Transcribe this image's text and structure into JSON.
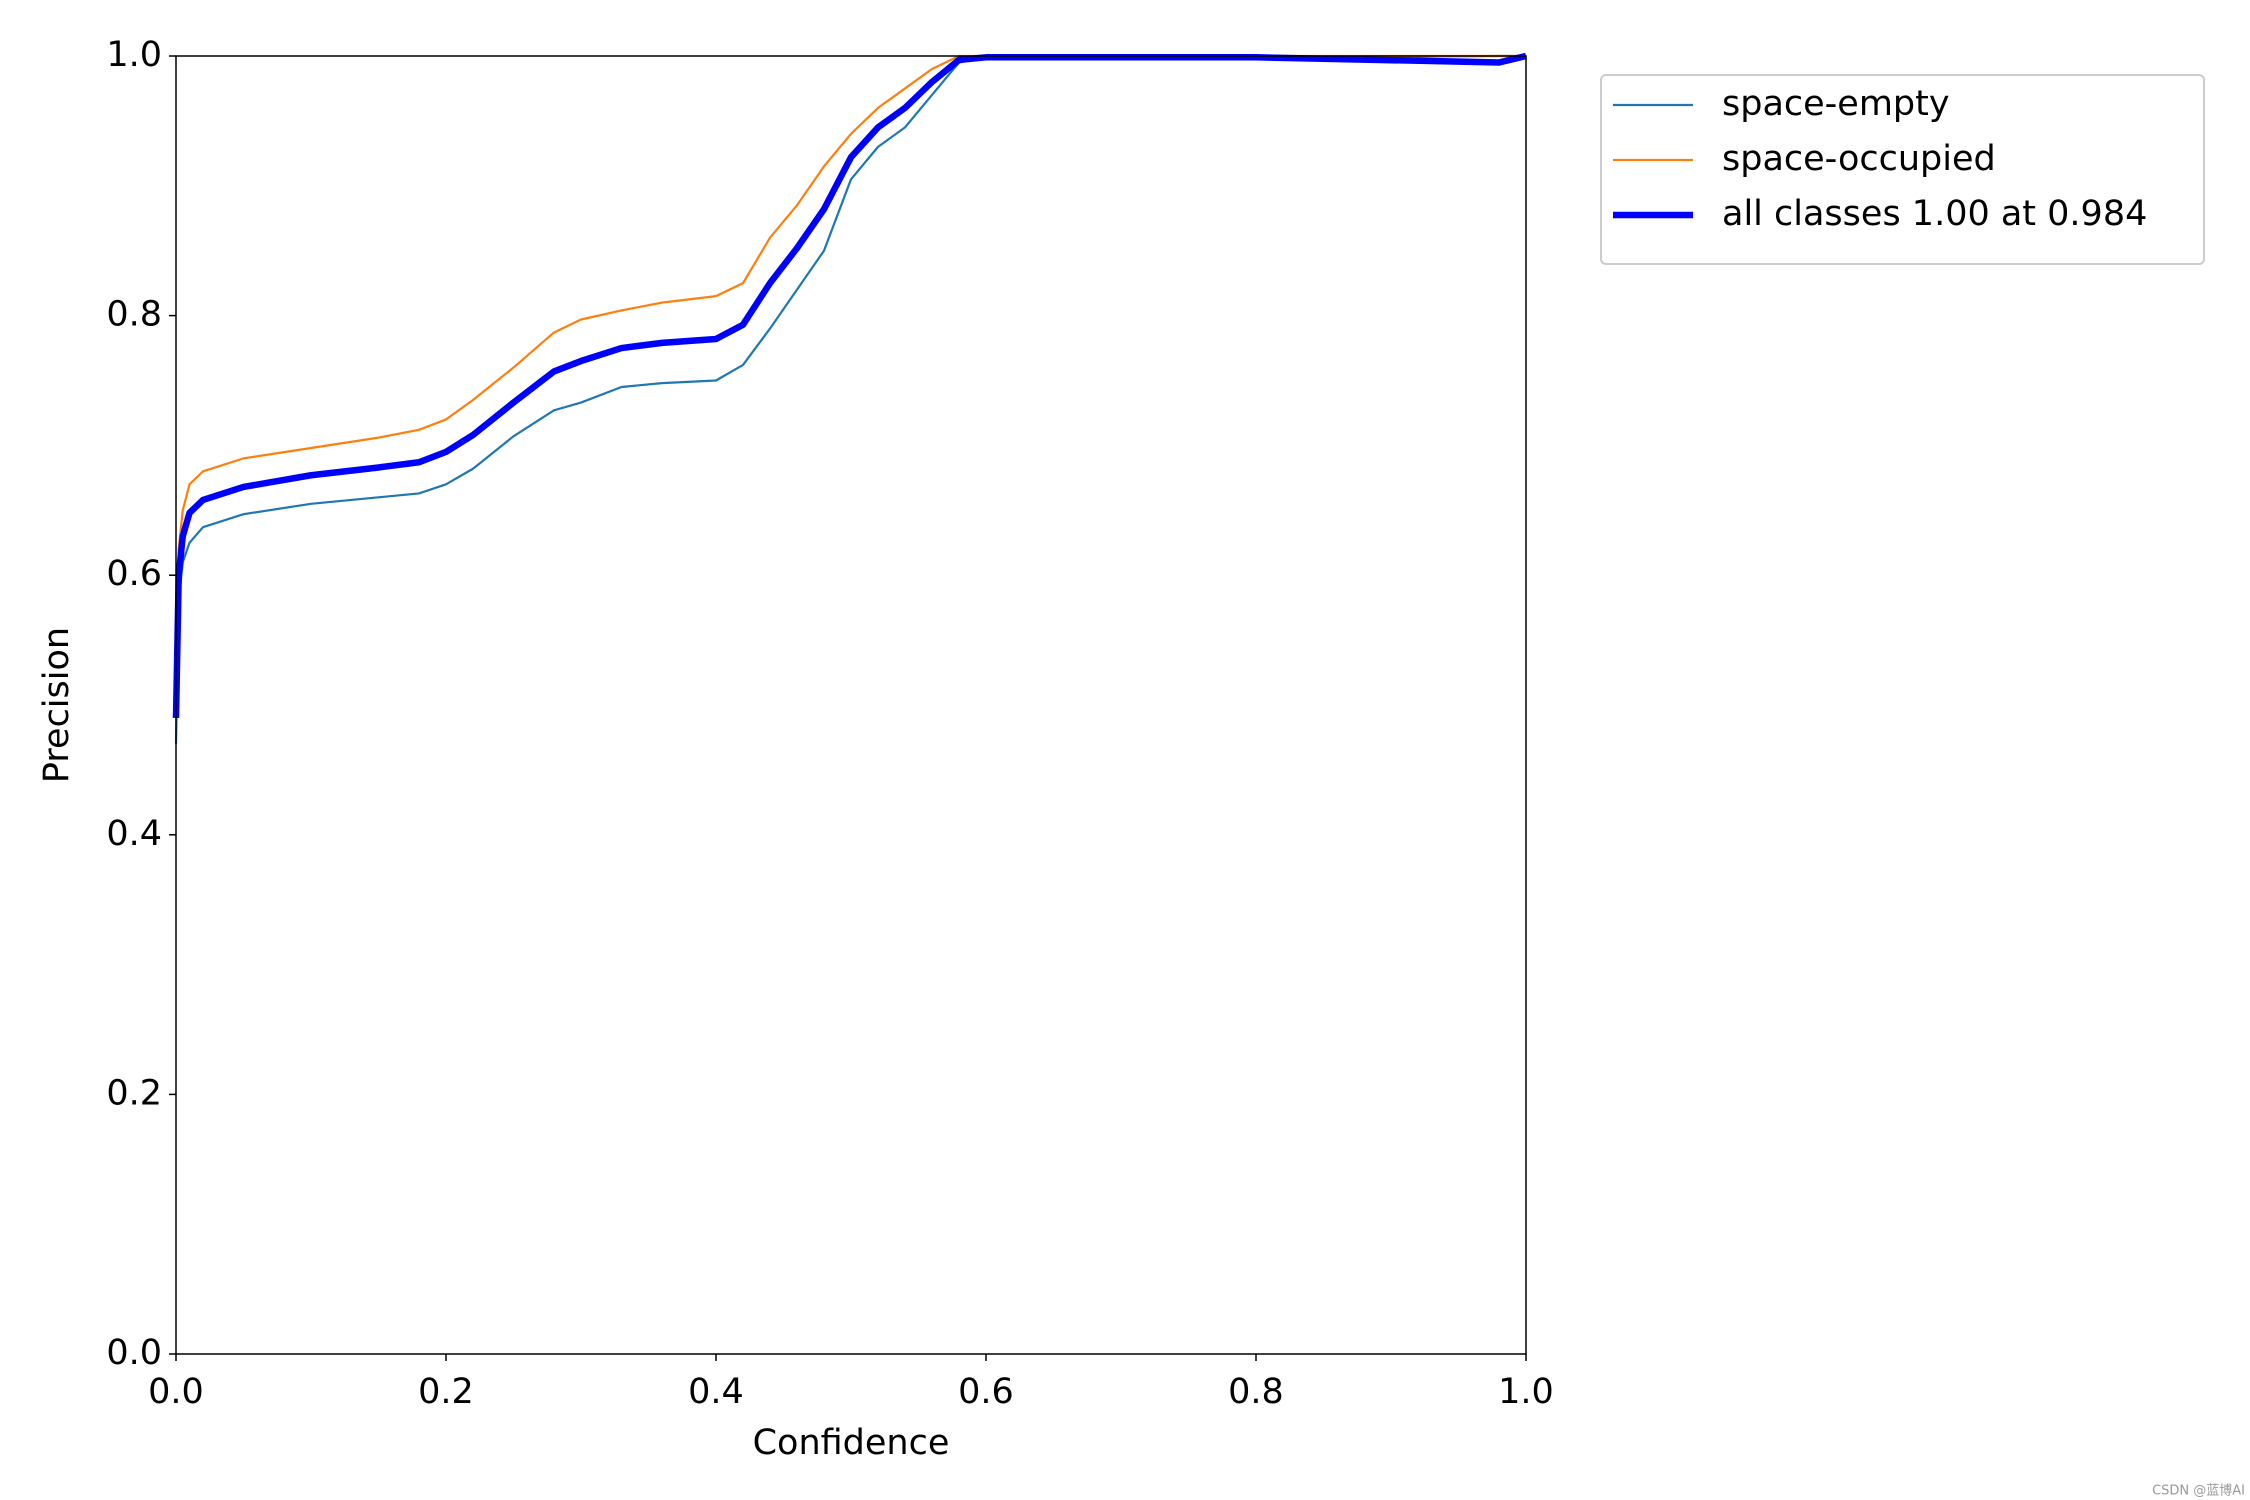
{
  "chart_data": {
    "type": "line",
    "xlabel": "Confidence",
    "ylabel": "Precision",
    "x": [
      0,
      0.002,
      0.005,
      0.01,
      0.02,
      0.05,
      0.1,
      0.15,
      0.18,
      0.2,
      0.22,
      0.25,
      0.28,
      0.3,
      0.33,
      0.36,
      0.4,
      0.42,
      0.44,
      0.46,
      0.48,
      0.5,
      0.52,
      0.54,
      0.56,
      0.58,
      0.6,
      0.8,
      0.98,
      1.0
    ],
    "series": [
      {
        "name": "space-empty",
        "color": "#1f77b4",
        "width": "thin",
        "values": [
          0.47,
          0.58,
          0.61,
          0.625,
          0.637,
          0.647,
          0.655,
          0.66,
          0.663,
          0.67,
          0.682,
          0.707,
          0.727,
          0.733,
          0.745,
          0.748,
          0.75,
          0.762,
          0.79,
          0.82,
          0.85,
          0.905,
          0.93,
          0.945,
          0.97,
          0.995,
          0.999,
          0.999,
          1.0,
          1.0
        ]
      },
      {
        "name": "space-occupied",
        "color": "#ff7f0e",
        "width": "thin",
        "values": [
          0.5,
          0.62,
          0.65,
          0.67,
          0.68,
          0.69,
          0.698,
          0.706,
          0.712,
          0.72,
          0.735,
          0.76,
          0.787,
          0.797,
          0.804,
          0.81,
          0.815,
          0.825,
          0.86,
          0.885,
          0.915,
          0.94,
          0.96,
          0.975,
          0.99,
          1.0,
          1.0,
          1.0,
          1.0,
          1.0
        ]
      },
      {
        "name": "all classes 1.00 at 0.984",
        "color": "#0000ff",
        "width": "thick",
        "values": [
          0.49,
          0.6,
          0.63,
          0.648,
          0.658,
          0.668,
          0.677,
          0.683,
          0.687,
          0.695,
          0.708,
          0.733,
          0.757,
          0.765,
          0.775,
          0.779,
          0.782,
          0.793,
          0.825,
          0.852,
          0.882,
          0.922,
          0.945,
          0.96,
          0.98,
          0.997,
          0.999,
          0.999,
          0.995,
          1.0
        ]
      }
    ],
    "xlim": [
      0,
      1
    ],
    "ylim": [
      0,
      1
    ],
    "xticks": [
      {
        "value": 0,
        "label": "0.0"
      },
      0.2,
      0.4,
      0.6,
      0.8,
      {
        "value": 1,
        "label": "1.0"
      }
    ],
    "yticks": [
      {
        "value": 0,
        "label": "0.0"
      },
      0.2,
      0.4,
      0.6,
      0.8,
      {
        "value": 1,
        "label": "1.0"
      }
    ],
    "grid": false,
    "legend": "outside"
  },
  "watermark": "CSDN @蓝博AI"
}
